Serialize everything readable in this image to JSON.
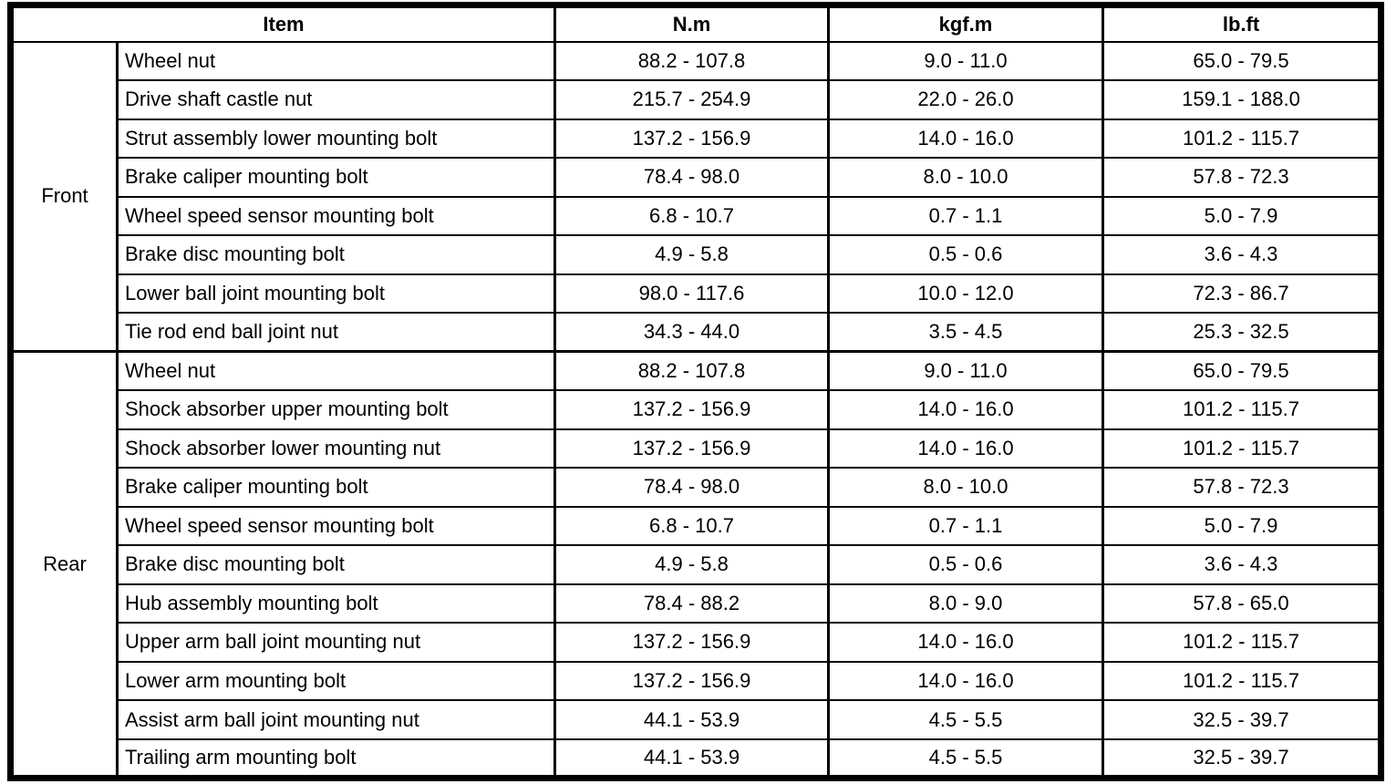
{
  "table": {
    "headers": {
      "item": "Item",
      "nm": "N.m",
      "kgfm": "kgf.m",
      "lbft": "lb.ft"
    },
    "sections": [
      {
        "label": "Front",
        "rows": [
          {
            "item": "Wheel nut",
            "nm": "88.2 - 107.8",
            "kgfm": "9.0 - 11.0",
            "lbft": "65.0 - 79.5"
          },
          {
            "item": "Drive shaft castle nut",
            "nm": "215.7 - 254.9",
            "kgfm": "22.0 - 26.0",
            "lbft": "159.1 - 188.0"
          },
          {
            "item": "Strut assembly lower mounting bolt",
            "nm": "137.2 - 156.9",
            "kgfm": "14.0 - 16.0",
            "lbft": "101.2 - 115.7"
          },
          {
            "item": "Brake caliper mounting bolt",
            "nm": "78.4 - 98.0",
            "kgfm": "8.0 - 10.0",
            "lbft": "57.8 - 72.3"
          },
          {
            "item": "Wheel speed sensor mounting bolt",
            "nm": "6.8 - 10.7",
            "kgfm": "0.7 - 1.1",
            "lbft": "5.0 - 7.9"
          },
          {
            "item": "Brake disc mounting bolt",
            "nm": "4.9 - 5.8",
            "kgfm": "0.5 - 0.6",
            "lbft": "3.6 - 4.3"
          },
          {
            "item": "Lower ball joint mounting bolt",
            "nm": "98.0 - 117.6",
            "kgfm": "10.0 - 12.0",
            "lbft": "72.3 - 86.7"
          },
          {
            "item": "Tie rod end ball joint nut",
            "nm": "34.3 - 44.0",
            "kgfm": "3.5 - 4.5",
            "lbft": "25.3 - 32.5"
          }
        ]
      },
      {
        "label": "Rear",
        "rows": [
          {
            "item": "Wheel nut",
            "nm": "88.2 - 107.8",
            "kgfm": "9.0 - 11.0",
            "lbft": "65.0 - 79.5"
          },
          {
            "item": "Shock absorber upper mounting bolt",
            "nm": "137.2 - 156.9",
            "kgfm": "14.0 - 16.0",
            "lbft": "101.2 - 115.7"
          },
          {
            "item": "Shock absorber lower mounting nut",
            "nm": "137.2 - 156.9",
            "kgfm": "14.0 - 16.0",
            "lbft": "101.2 - 115.7"
          },
          {
            "item": "Brake caliper mounting bolt",
            "nm": "78.4 - 98.0",
            "kgfm": "8.0 - 10.0",
            "lbft": "57.8 - 72.3"
          },
          {
            "item": "Wheel speed sensor mounting bolt",
            "nm": "6.8 - 10.7",
            "kgfm": "0.7 - 1.1",
            "lbft": "5.0 - 7.9"
          },
          {
            "item": "Brake disc mounting bolt",
            "nm": "4.9 - 5.8",
            "kgfm": "0.5 - 0.6",
            "lbft": "3.6 - 4.3"
          },
          {
            "item": "Hub assembly mounting bolt",
            "nm": "78.4 - 88.2",
            "kgfm": "8.0 - 9.0",
            "lbft": "57.8 - 65.0"
          },
          {
            "item": "Upper arm ball joint mounting nut",
            "nm": "137.2 - 156.9",
            "kgfm": "14.0 - 16.0",
            "lbft": "101.2 - 115.7"
          },
          {
            "item": "Lower arm mounting bolt",
            "nm": "137.2 - 156.9",
            "kgfm": "14.0 - 16.0",
            "lbft": "101.2 - 115.7"
          },
          {
            "item": "Assist arm ball joint mounting nut",
            "nm": "44.1 - 53.9",
            "kgfm": "4.5 - 5.5",
            "lbft": "32.5 - 39.7"
          },
          {
            "item": "Trailing arm mounting bolt",
            "nm": "44.1 - 53.9",
            "kgfm": "4.5 - 5.5",
            "lbft": "32.5 - 39.7"
          }
        ]
      }
    ]
  }
}
